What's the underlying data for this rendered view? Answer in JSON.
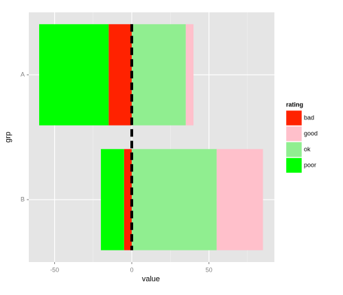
{
  "chart_data": {
    "type": "bar",
    "orientation": "horizontal",
    "stacked": true,
    "categories": [
      "A",
      "B"
    ],
    "series": [
      {
        "name": "bad",
        "color": "#ff2200",
        "values": [
          -15,
          -5
        ]
      },
      {
        "name": "good",
        "color": "#ffc0cb",
        "values": [
          5,
          30
        ]
      },
      {
        "name": "ok",
        "color": "#90ee90",
        "values": [
          35,
          55
        ]
      },
      {
        "name": "poor",
        "color": "#00ff00",
        "values": [
          -45,
          -15
        ]
      }
    ],
    "xlabel": "value",
    "ylabel": "grp",
    "legend_title": "rating",
    "xlim": [
      -66.7,
      92.4
    ],
    "xticks": [
      -50,
      0,
      50
    ],
    "grid": true,
    "vline": 0
  }
}
